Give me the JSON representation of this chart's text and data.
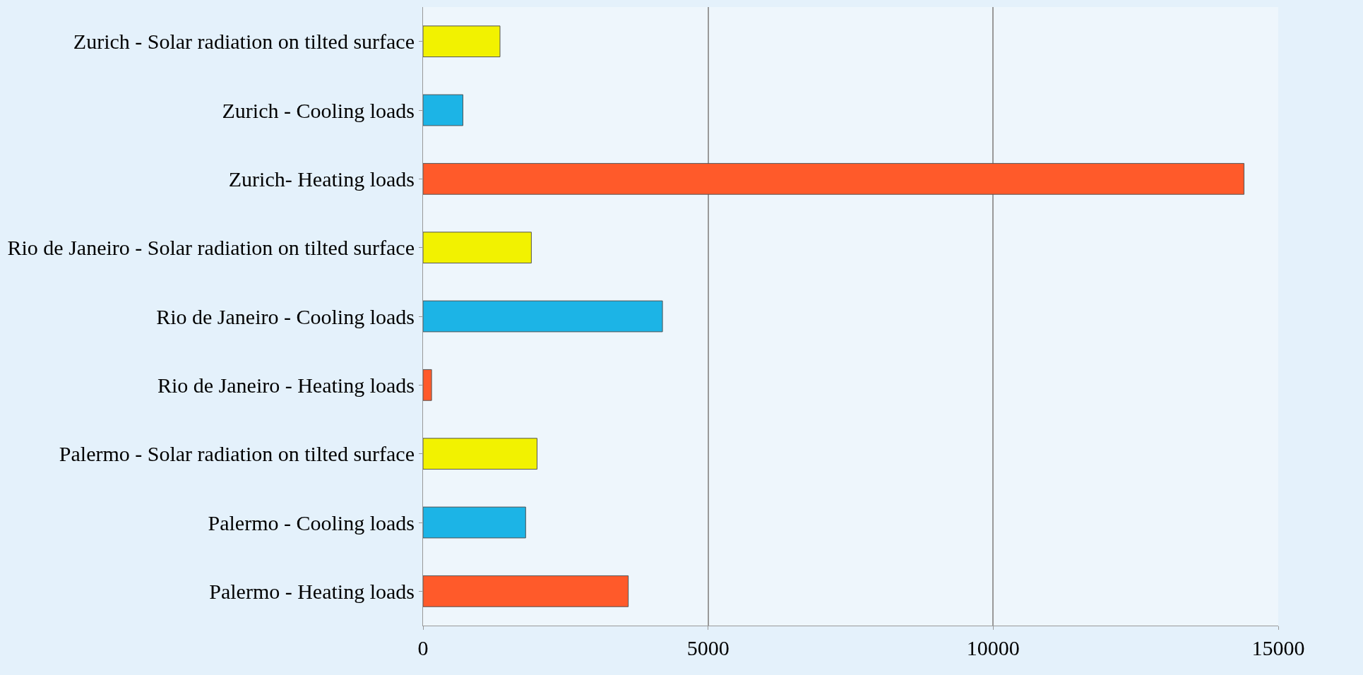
{
  "chart_data": {
    "type": "bar",
    "orientation": "horizontal",
    "categories": [
      "Zurich - Solar radiation on tilted surface",
      "Zurich - Cooling loads",
      "Zurich- Heating loads",
      "Rio de Janeiro - Solar radiation on tilted surface",
      "Rio de Janeiro - Cooling loads",
      "Rio de Janeiro - Heating loads",
      "Palermo - Solar radiation on tilted surface",
      "Palermo - Cooling loads",
      "Palermo - Heating loads"
    ],
    "values": [
      1350,
      700,
      14400,
      1900,
      4200,
      150,
      2000,
      1800,
      3600
    ],
    "colors": [
      "#f2f200",
      "#1cb4e6",
      "#ff5a2a",
      "#f2f200",
      "#1cb4e6",
      "#ff5a2a",
      "#f2f200",
      "#1cb4e6",
      "#ff5a2a"
    ],
    "xlim": [
      0,
      15000
    ],
    "xticks": [
      0,
      5000,
      10000,
      15000
    ],
    "grid": "x"
  }
}
